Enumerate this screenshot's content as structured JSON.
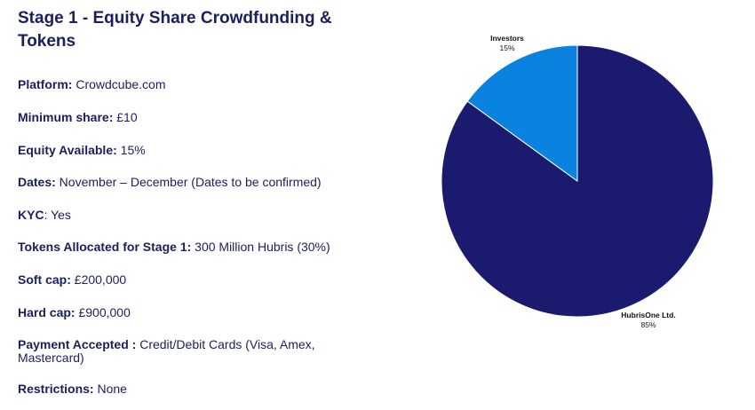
{
  "title": "Stage 1 - Equity Share Crowdfunding & Tokens",
  "details": [
    {
      "label": "Platform:",
      "value": " Crowdcube.com"
    },
    {
      "label": "Minimum share:",
      "value": " £10"
    },
    {
      "label": "Equity Available:",
      "value": " 15%"
    },
    {
      "label": "Dates:",
      "value": " November – December (Dates to be confirmed)"
    },
    {
      "label": "KYC",
      "value": ": Yes"
    },
    {
      "label": "Tokens Allocated for Stage 1:",
      "value": " 300 Million Hubris (30%)"
    },
    {
      "label": "Soft cap:",
      "value": " £200,000"
    },
    {
      "label": "Hard cap:",
      "value": " £900,000"
    },
    {
      "label": "Payment Accepted :",
      "value": " Credit/Debit Cards (Visa, Amex, Mastercard)"
    },
    {
      "label": "Restrictions:",
      "value": " None"
    }
  ],
  "chart_data": {
    "type": "pie",
    "title": "",
    "slices": [
      {
        "label": "HubrisOne Ltd.",
        "value": 85,
        "display": "85%",
        "color": "#1a1a6e"
      },
      {
        "label": "Investors",
        "value": 15,
        "display": "15%",
        "color": "#0a82e0"
      }
    ]
  }
}
